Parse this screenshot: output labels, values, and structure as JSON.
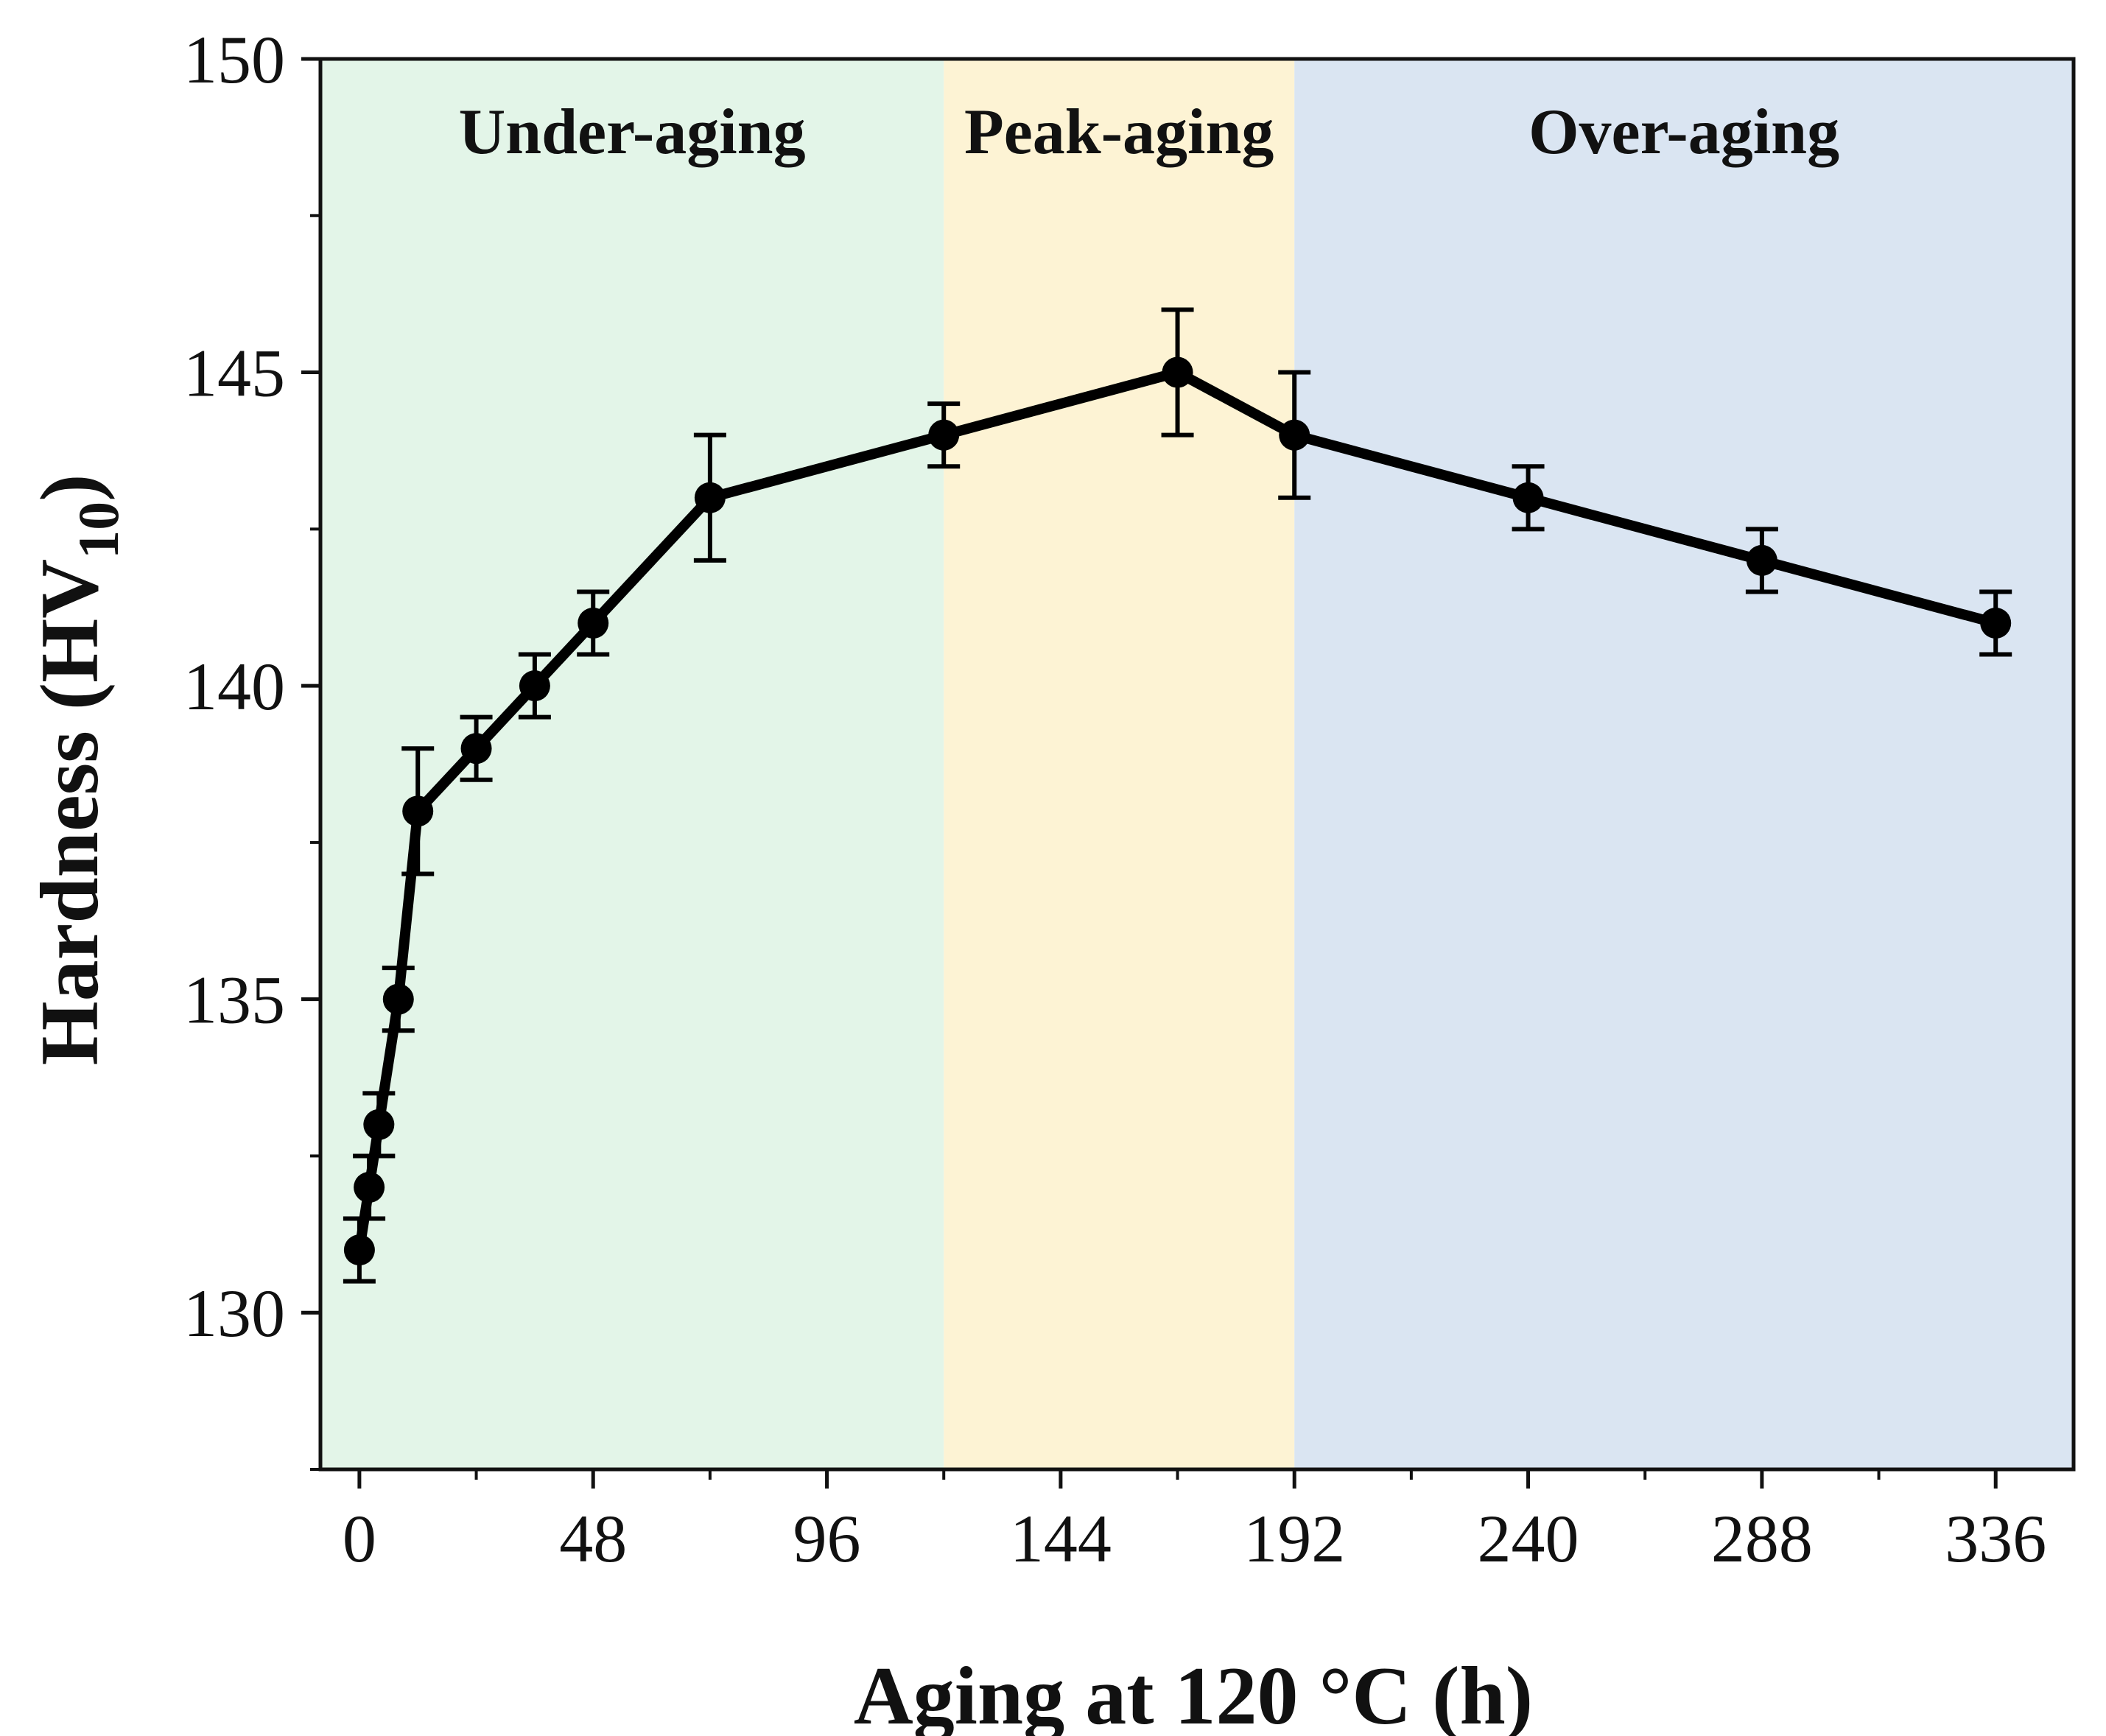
{
  "chart_data": {
    "type": "line",
    "title": "",
    "xlabel": "Aging at 120 °C (h)",
    "ylabel_main": "Hardness (HV",
    "ylabel_sub": "10",
    "ylabel_close": ")",
    "xlim": [
      -8,
      352
    ],
    "ylim": [
      127.5,
      150
    ],
    "x_ticks": [
      0,
      48,
      96,
      144,
      192,
      240,
      288,
      336
    ],
    "x_minor_ticks": [
      24,
      72,
      120,
      168,
      216,
      264,
      312
    ],
    "y_ticks": [
      130,
      135,
      140,
      145,
      150
    ],
    "y_minor_ticks": [
      127.5,
      132.5,
      137.5,
      142.5,
      147.5
    ],
    "regions": [
      {
        "label": "Under-aging",
        "x_start": -8,
        "x_end": 120,
        "color": "#e3f5e8"
      },
      {
        "label": "Peak-aging",
        "x_start": 120,
        "x_end": 192,
        "color": "#fdf3d4"
      },
      {
        "label": "Over-aging",
        "x_start": 192,
        "x_end": 352,
        "color": "#dae5f2"
      }
    ],
    "series": [
      {
        "name": "Hardness",
        "color": "#000000",
        "x": [
          0,
          2,
          4,
          8,
          12,
          24,
          36,
          48,
          72,
          120,
          168,
          192,
          240,
          288,
          336
        ],
        "y": [
          131,
          132,
          133,
          135,
          138,
          139,
          140,
          141,
          143,
          144,
          145,
          144,
          143,
          142,
          141
        ],
        "error": [
          0.5,
          0.5,
          0.5,
          0.5,
          1,
          0.5,
          0.5,
          0.5,
          1,
          0.5,
          1,
          1,
          0.5,
          0.5,
          0.5
        ]
      }
    ]
  }
}
